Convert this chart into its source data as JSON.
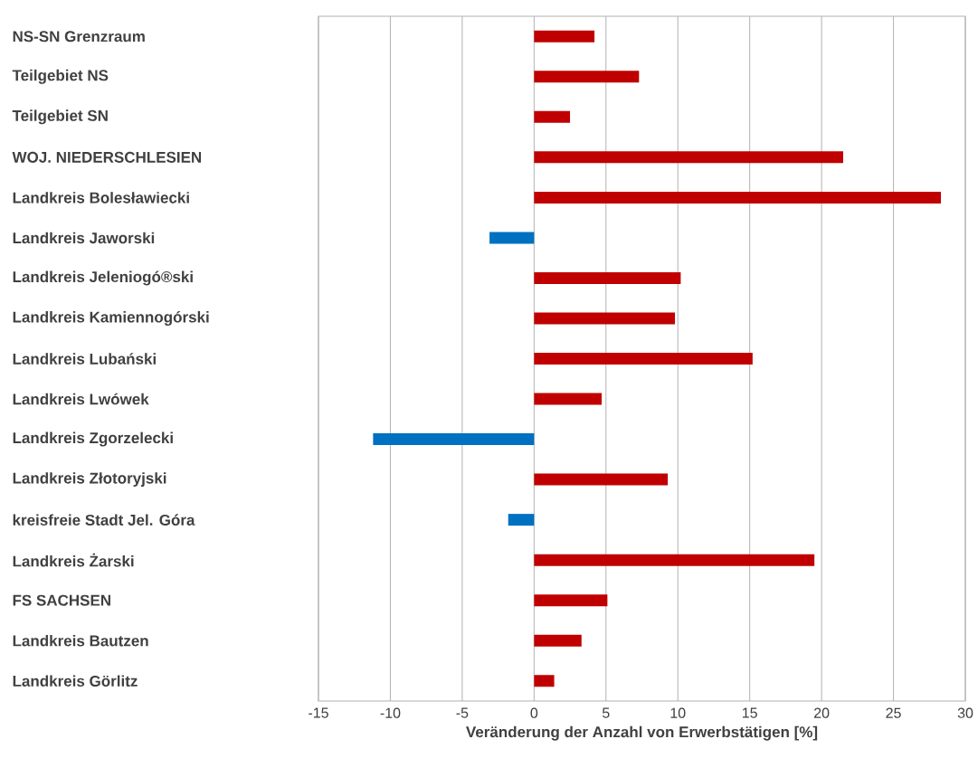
{
  "chart_data": {
    "type": "bar",
    "orientation": "horizontal",
    "categories": [
      "NS-SN Grenzraum",
      "Teilgebiet NS",
      "Teilgebiet SN",
      "WOJ. NIEDERSCHLESIEN",
      "Landkreis Bolesławiecki",
      "Landkreis Jaworski",
      "Landkreis Jeleniogó®ski",
      "Landkreis Kamiennogórski",
      "Landkreis Lubański",
      "Landkreis Lwówek",
      "Landkreis Zgorzelecki",
      "Landkreis Złotoryjski",
      "kreisfreie Stadt Jel. Góra",
      "Landkreis Żarski",
      "FS SACHSEN",
      "Landkreis Bautzen",
      "Landkreis Görlitz"
    ],
    "values": [
      4.2,
      7.3,
      2.5,
      21.5,
      28.3,
      -3.1,
      10.2,
      9.8,
      15.2,
      4.7,
      -11.2,
      9.3,
      -1.8,
      19.5,
      5.1,
      3.3,
      1.4
    ],
    "colors": [
      "#c00000",
      "#c00000",
      "#c00000",
      "#c00000",
      "#c00000",
      "#0070c0",
      "#c00000",
      "#c00000",
      "#c00000",
      "#c00000",
      "#0070c0",
      "#c00000",
      "#0070c0",
      "#c00000",
      "#c00000",
      "#c00000",
      "#c00000"
    ],
    "xlabel": "Veränderung der Anzahl von Erwerbstätigen [%]",
    "xlim": [
      -15,
      30
    ],
    "xticks": [
      -15,
      -10,
      -5,
      0,
      5,
      10,
      15,
      20,
      25,
      30
    ],
    "grid": "x"
  }
}
